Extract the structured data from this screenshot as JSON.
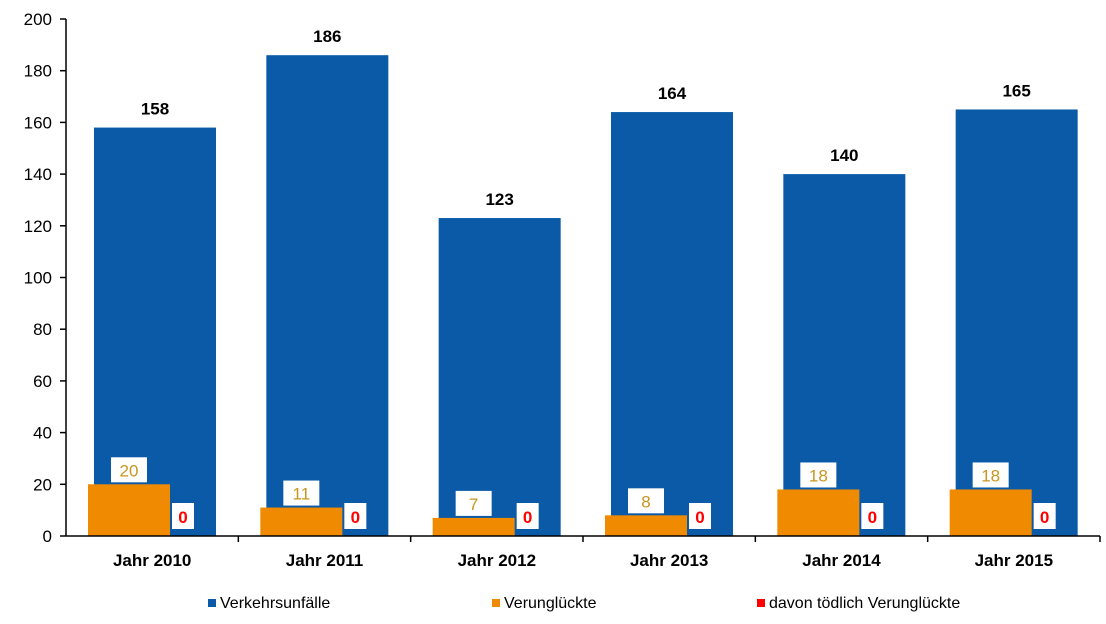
{
  "chart_data": {
    "type": "bar",
    "categories": [
      "Jahr 2010",
      "Jahr 2011",
      "Jahr 2012",
      "Jahr 2013",
      "Jahr 2014",
      "Jahr 2015"
    ],
    "series": [
      {
        "name": "Verkehrsunfälle",
        "values": [
          158,
          186,
          123,
          164,
          140,
          165
        ],
        "color": "#0a5aa8"
      },
      {
        "name": "Verunglückte",
        "values": [
          20,
          11,
          7,
          8,
          18,
          18
        ],
        "color": "#f08a00"
      },
      {
        "name": "davon tödlich Verunglückte",
        "values": [
          0,
          0,
          0,
          0,
          0,
          0
        ],
        "color": "#ff0000"
      }
    ],
    "yticks": [
      0,
      20,
      40,
      60,
      80,
      100,
      120,
      140,
      160,
      180,
      200
    ],
    "ylim": [
      0,
      200
    ],
    "grid": false,
    "legend": "bottom",
    "xlabel": "",
    "ylabel": "",
    "title": ""
  }
}
